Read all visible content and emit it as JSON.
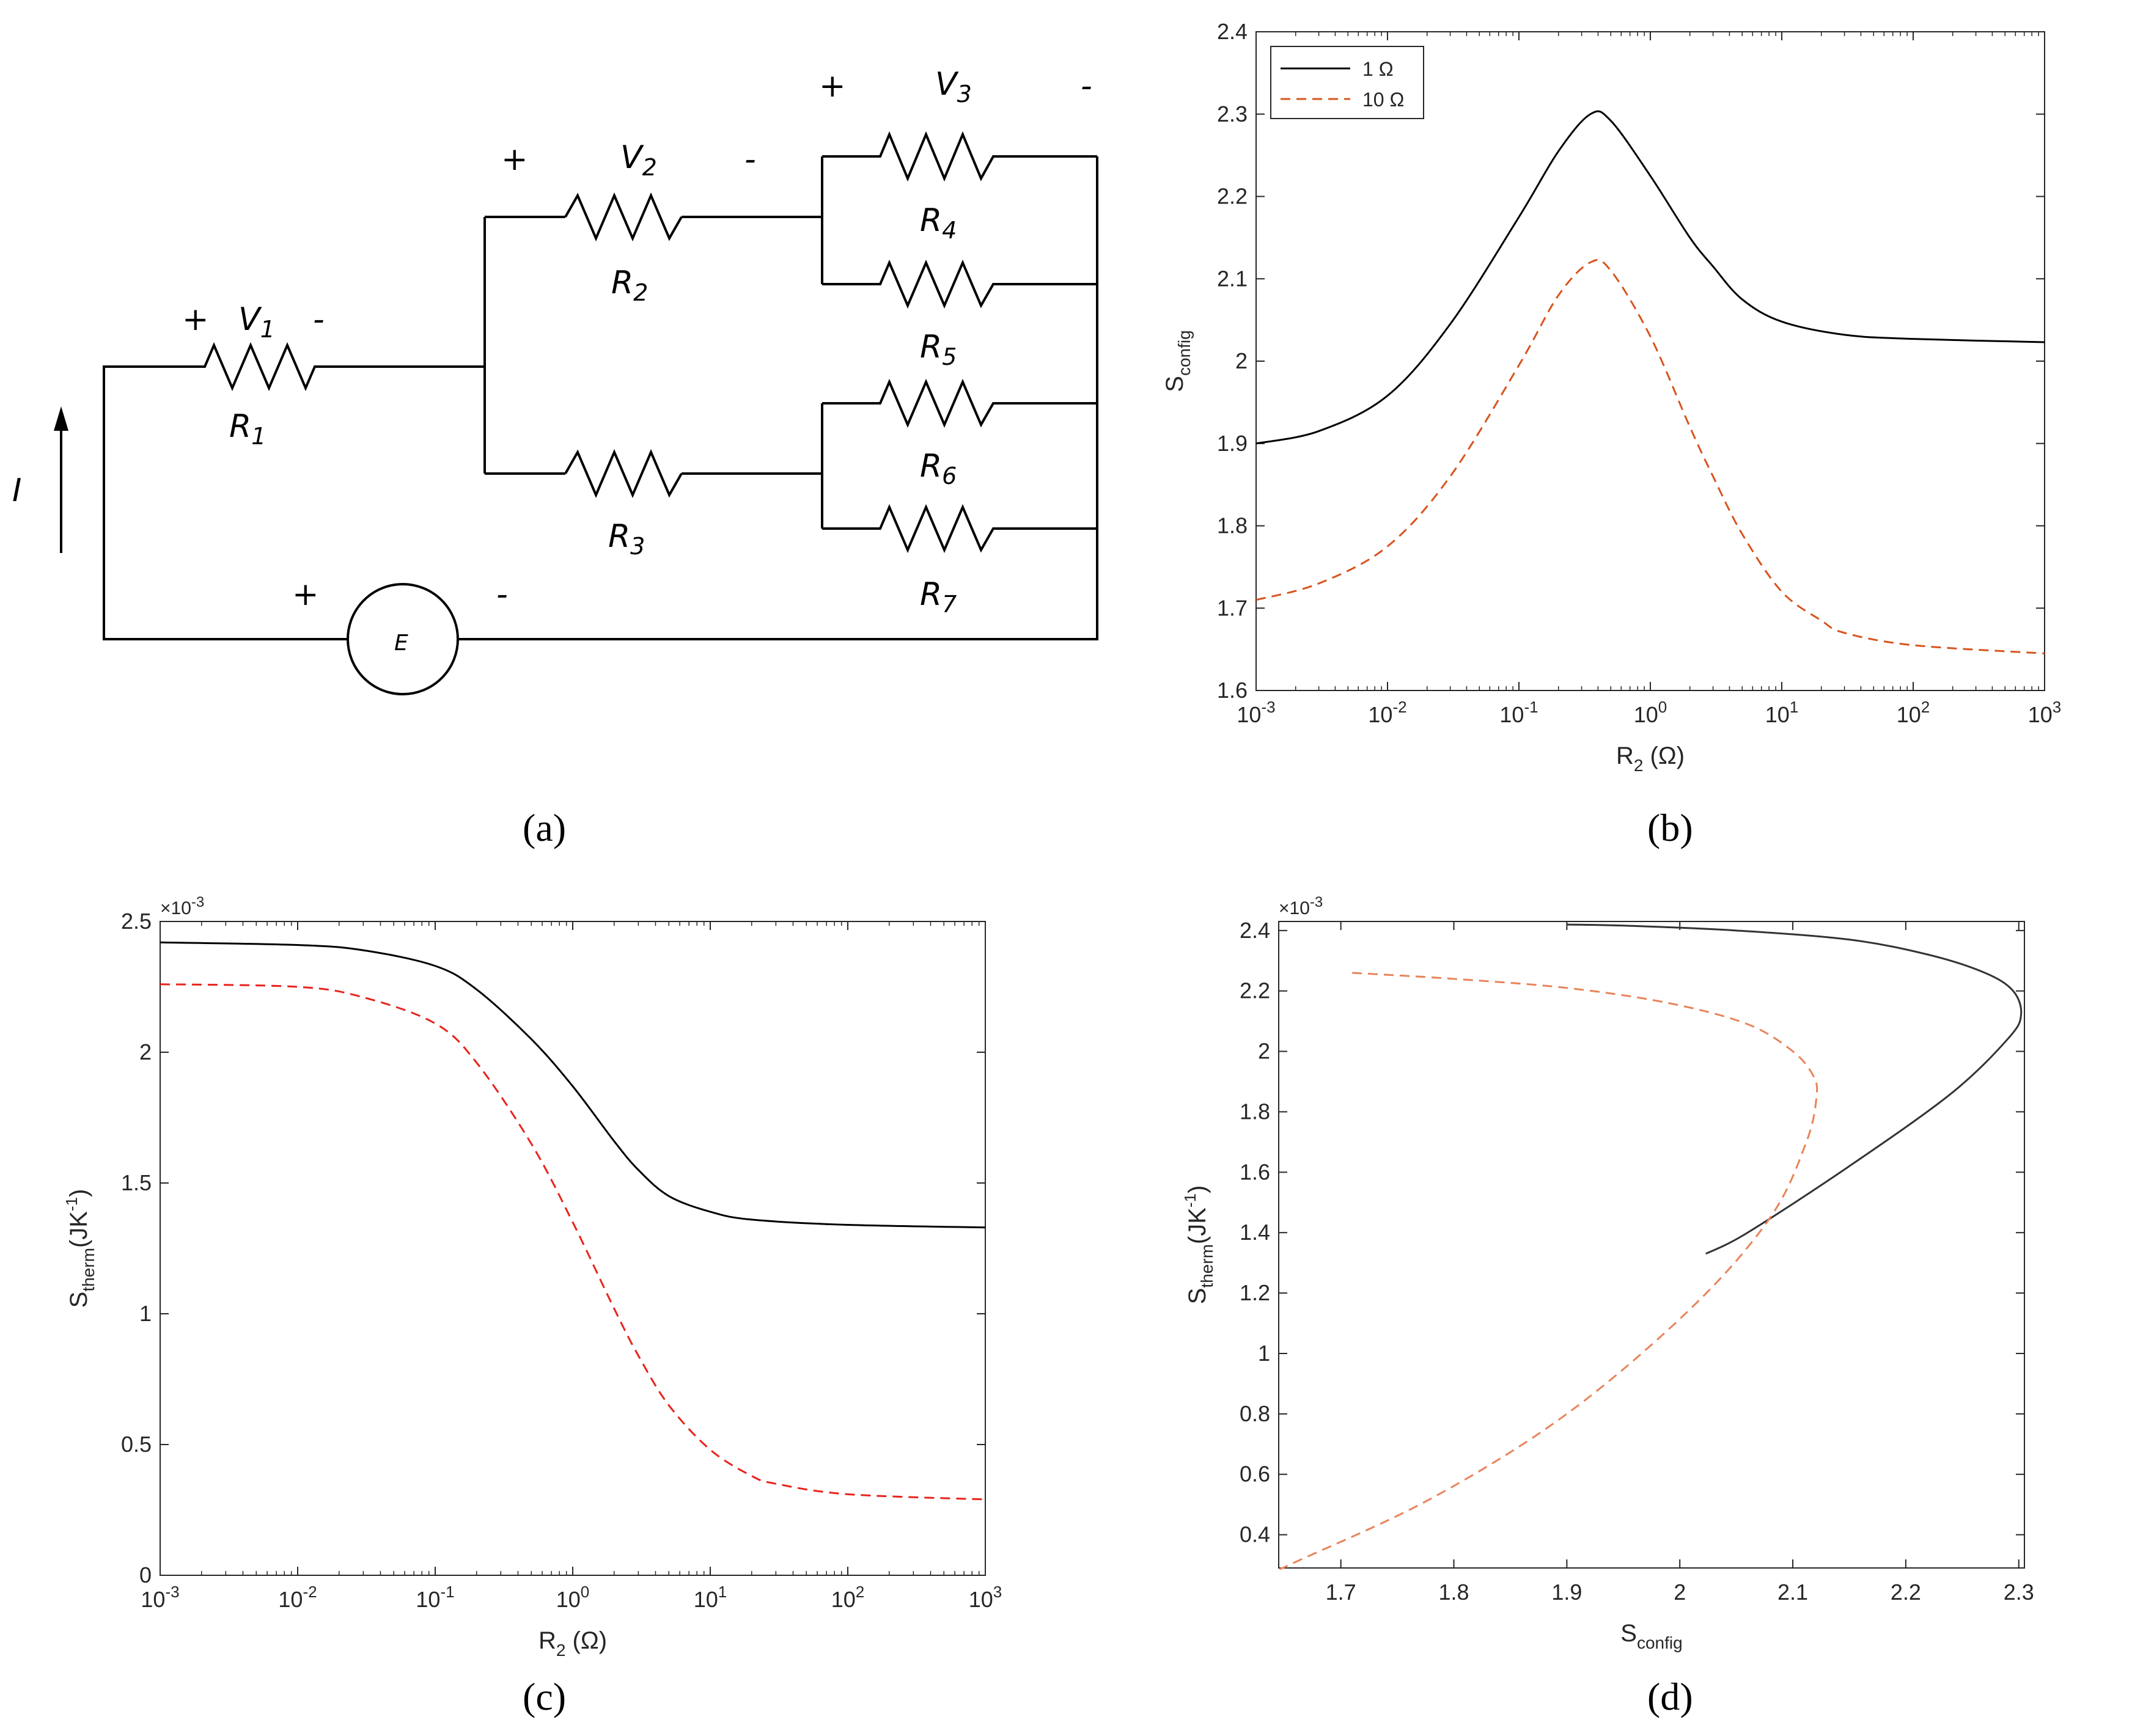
{
  "panels": {
    "a": {
      "label": "(a)"
    },
    "b": {
      "label": "(b)"
    },
    "c": {
      "label": "(c)"
    },
    "d": {
      "label": "(d)"
    }
  },
  "circuit": {
    "current": "I",
    "source": "E",
    "plus": "+",
    "minus": "-",
    "v1": "V",
    "v1_sub": "1",
    "v2": "V",
    "v2_sub": "2",
    "v3": "V",
    "v3_sub": "3",
    "r1": "R",
    "r1_sub": "1",
    "r2": "R",
    "r2_sub": "2",
    "r3": "R",
    "r3_sub": "3",
    "r4": "R",
    "r4_sub": "4",
    "r5": "R",
    "r5_sub": "5",
    "r6": "R",
    "r6_sub": "6",
    "r7": "R",
    "r7_sub": "7"
  },
  "chart_data": [
    {
      "id": "b",
      "type": "line",
      "xscale": "log",
      "xlim": [
        0.001,
        1000
      ],
      "ylim": [
        1.6,
        2.4
      ],
      "xticks": [
        "10^-3",
        "10^-2",
        "10^-1",
        "10^0",
        "10^1",
        "10^2",
        "10^3"
      ],
      "yticks": [
        "1.6",
        "1.7",
        "1.8",
        "1.9",
        "2",
        "2.1",
        "2.2",
        "2.3",
        "2.4"
      ],
      "xlabel": "R",
      "xlabel_sub": "2",
      "xlabel_unit": " (Ω)",
      "ylabel": "S",
      "ylabel_sub": "config",
      "legend": {
        "placement": "top-left",
        "entries": [
          "1 Ω",
          "10 Ω"
        ]
      },
      "series": [
        {
          "name": "1 Ω",
          "color": "#000000",
          "dash": "solid",
          "x": [
            0.001,
            0.003,
            0.01,
            0.03,
            0.1,
            0.2,
            0.35,
            0.5,
            1,
            2,
            3,
            5,
            10,
            30,
            100,
            1000
          ],
          "y": [
            1.9,
            1.915,
            1.958,
            2.045,
            2.175,
            2.255,
            2.3,
            2.292,
            2.225,
            2.15,
            2.115,
            2.075,
            2.048,
            2.032,
            2.027,
            2.023
          ]
        },
        {
          "name": "10 Ω",
          "color": "#D9531E",
          "dash": "dashed",
          "x": [
            0.001,
            0.003,
            0.01,
            0.03,
            0.1,
            0.2,
            0.35,
            0.5,
            1,
            2,
            3,
            5,
            10,
            20,
            30,
            100,
            1000
          ],
          "y": [
            1.71,
            1.73,
            1.775,
            1.86,
            1.995,
            2.08,
            2.12,
            2.11,
            2.03,
            1.92,
            1.86,
            1.79,
            1.72,
            1.685,
            1.67,
            1.655,
            1.645
          ]
        }
      ]
    },
    {
      "id": "c",
      "type": "line",
      "xscale": "log",
      "xlim": [
        0.001,
        1000
      ],
      "ylim": [
        0,
        2.5
      ],
      "multiplier": "×10",
      "multiplier_exp": "-3",
      "xticks": [
        "10^-3",
        "10^-2",
        "10^-1",
        "10^0",
        "10^1",
        "10^2",
        "10^3"
      ],
      "yticks": [
        "0",
        "0.5",
        "1",
        "1.5",
        "2",
        "2.5"
      ],
      "xlabel": "R",
      "xlabel_sub": "2",
      "xlabel_unit": " (Ω)",
      "ylabel": "S",
      "ylabel_sub": "therm",
      "ylabel_unit": "(JK",
      "ylabel_exp": "-1",
      "ylabel_end": ")",
      "series": [
        {
          "color": "#000000",
          "dash": "solid",
          "x": [
            0.001,
            0.01,
            0.03,
            0.1,
            0.2,
            0.5,
            1,
            2,
            3,
            5,
            10,
            20,
            100,
            1000
          ],
          "y": [
            2.42,
            2.41,
            2.39,
            2.33,
            2.24,
            2.05,
            1.87,
            1.66,
            1.55,
            1.45,
            1.39,
            1.36,
            1.34,
            1.33
          ]
        },
        {
          "color": "#E8231C",
          "dash": "dashed",
          "x": [
            0.001,
            0.01,
            0.03,
            0.1,
            0.2,
            0.5,
            1,
            2,
            3,
            5,
            10,
            20,
            30,
            100,
            1000
          ],
          "y": [
            2.26,
            2.25,
            2.21,
            2.11,
            1.96,
            1.65,
            1.35,
            1.02,
            0.84,
            0.65,
            0.48,
            0.38,
            0.35,
            0.31,
            0.29
          ]
        }
      ]
    },
    {
      "id": "d",
      "type": "line",
      "xscale": "linear",
      "xlim": [
        1.645,
        2.305
      ],
      "ylim": [
        0.29,
        2.43
      ],
      "multiplier": "×10",
      "multiplier_exp": "-3",
      "xticks": [
        "1.7",
        "1.8",
        "1.9",
        "2",
        "2.1",
        "2.2",
        "2.3"
      ],
      "yticks": [
        "0.4",
        "0.6",
        "0.8",
        "1",
        "1.2",
        "1.4",
        "1.6",
        "1.8",
        "2",
        "2.2",
        "2.4"
      ],
      "xlabel": "S",
      "xlabel_sub": "config",
      "ylabel": "S",
      "ylabel_sub": "therm",
      "ylabel_unit": "(JK",
      "ylabel_exp": "-1",
      "ylabel_end": ")",
      "series": [
        {
          "color": "#333333",
          "dash": "solid",
          "x": [
            1.9,
            1.96,
            2.05,
            2.15,
            2.22,
            2.27,
            2.295,
            2.302,
            2.29,
            2.24,
            2.15,
            2.06,
            2.023
          ],
          "y": [
            2.42,
            2.415,
            2.4,
            2.37,
            2.32,
            2.26,
            2.2,
            2.12,
            2.04,
            1.86,
            1.62,
            1.4,
            1.33
          ]
        },
        {
          "color": "#E8845A",
          "dash": "dashed",
          "x": [
            1.71,
            1.8,
            1.9,
            1.99,
            2.06,
            2.1,
            2.118,
            2.121,
            2.112,
            2.08,
            2.01,
            1.9,
            1.78,
            1.66,
            1.648
          ],
          "y": [
            2.26,
            2.24,
            2.21,
            2.16,
            2.09,
            2.0,
            1.92,
            1.85,
            1.7,
            1.45,
            1.15,
            0.8,
            0.52,
            0.31,
            0.29
          ]
        }
      ]
    }
  ]
}
